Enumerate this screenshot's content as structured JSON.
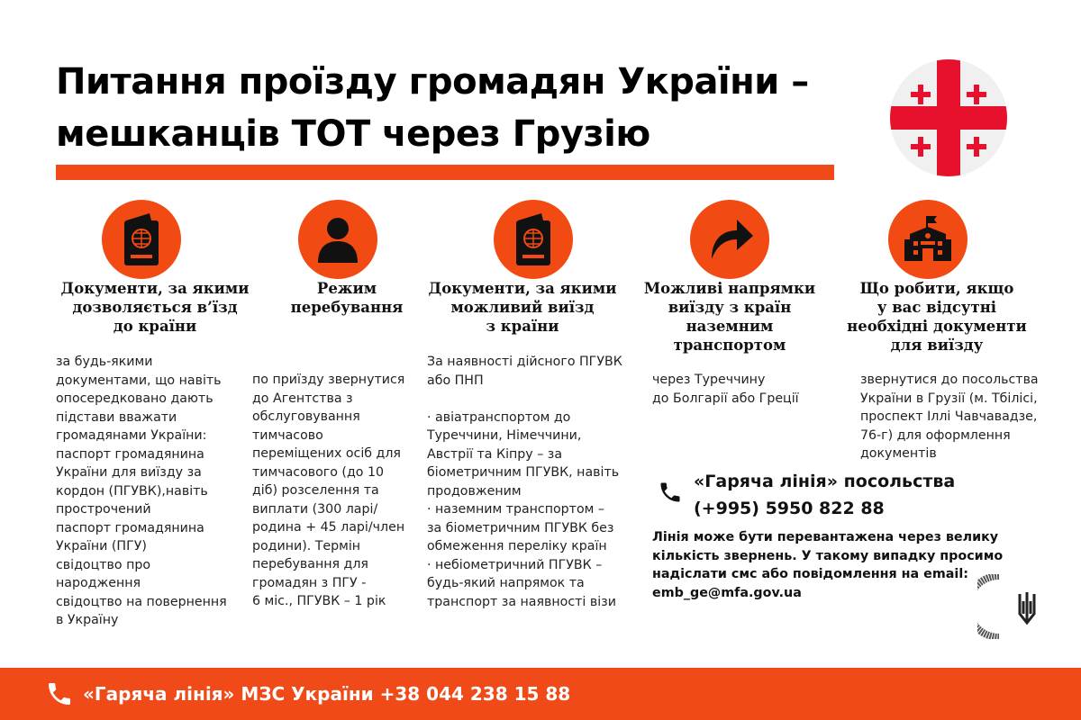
{
  "title": {
    "line1": "Питання проїзду громадян України –",
    "line2": "мешканців ТОТ через Грузію"
  },
  "colors": {
    "accent": "#f04a18",
    "flag_red": "#e8112d"
  },
  "columns": [
    {
      "icon": "passport-icon",
      "heading": "Документи, за якими\nдозволяється в’їзд\nдо країни",
      "body": "за будь-якими\nдокументами, що навіть\nопосередковано дають\nпідстави вважати\nгромадянами України:\nпаспорт громадянина\nУкраїни для виїзду за\nкордон (ПГУВК),навіть\nпрострочений\nпаспорт громадянина\nУкраїни (ПГУ)\nсвідоцтво про\nнародження\nсвідоцтво на повернення\nв Україну"
    },
    {
      "icon": "person-icon",
      "heading": "Режим\nперебування",
      "body": "по приїзду звернутися\nдо Агентства з\nобслуговування\nтимчасово\nпереміщених осіб  для\nтимчасового (до 10\nдіб) розселення та\nвиплати (300 ларі/\nродина + 45 ларі/член\nродини). Термін\nперебування для\nгромадян з ПГУ -\n6 міс., ПГУВК – 1 рік"
    },
    {
      "icon": "passport-icon",
      "heading": "Документи, за якими\nможливий виїзд\nз країни",
      "body": "За наявності дійсного ПГУВК\nабо ПНП\n\n· авіатранспортом до\nТуреччини, Німеччини,\nАвстрії та Кіпру – за\nбіометричним ПГУВК, навіть\nпродовженим\n· наземним транспортом –\nза біометричним ПГУВК без\nобмеження переліку країн\n· небіометричний ПГУВК –\nбудь-який напрямок та\nтранспорт за наявності візи"
    },
    {
      "icon": "arrow-forward-icon",
      "heading": "Можливі напрямки\nвиїзду з країн\nназемним\nтранспортом",
      "body": "через Туреччину\nдо Болгарії або Греції"
    },
    {
      "icon": "embassy-building-icon",
      "heading": "Що робити, якщо\nу  вас відсутні\nнеобхідні документи\nдля виїзду",
      "body": "звернутися до посольства\nУкраїни в Грузії (м. Тбілісі,\nпроспект Іллі Чавчавадзе,\n76-г) для оформлення\nдокументів"
    }
  ],
  "embassy_hotline": {
    "label": "«Гаряча лінія» посольства",
    "phone": "(+995) 5950 822 88"
  },
  "note": "Лінія може бути перевантажена через велику\nкількість звернень. У такому випадку просимо\nнадіслати смс або повідомлення на email:\nemb_ge@mfa.gov.ua",
  "footer": {
    "text": "«Гаряча лінія» МЗС України +38 044 238 15 88"
  }
}
